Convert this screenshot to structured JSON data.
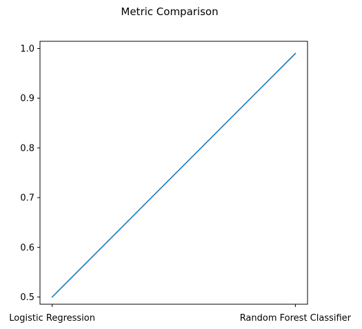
{
  "chart_data": {
    "type": "line",
    "title": "Metric Comparison",
    "xlabel": "",
    "ylabel": "",
    "categories": [
      "Logistic Regression",
      "Random Forest Classifier"
    ],
    "series": [
      {
        "color": "#1f77b4",
        "values": [
          0.5,
          0.99
        ]
      }
    ],
    "ylim": [
      0.4855,
      1.0145
    ],
    "yticks": [
      0.5,
      0.6,
      0.7,
      0.8,
      0.9,
      1.0
    ],
    "ytick_labels": [
      "0.5",
      "0.6",
      "0.7",
      "0.8",
      "0.9",
      "1.0"
    ],
    "grid": false,
    "legend": "none"
  }
}
